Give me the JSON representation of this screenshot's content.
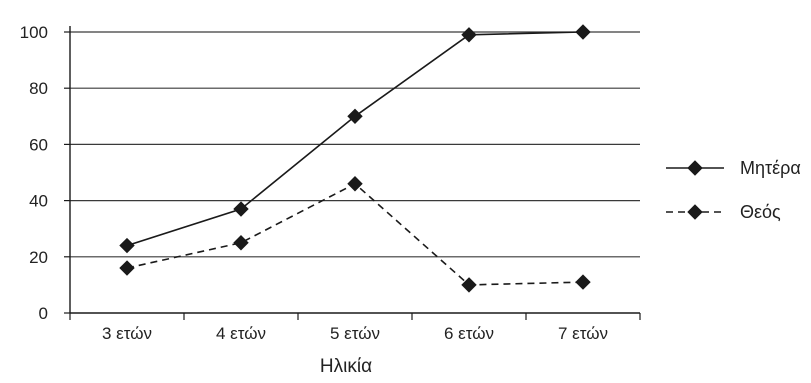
{
  "chart_data": {
    "type": "line",
    "categories": [
      "3 ετών",
      "4 ετών",
      "5 ετών",
      "6 ετών",
      "7 ετών"
    ],
    "series": [
      {
        "name": "Μητέρα",
        "values": [
          24,
          37,
          70,
          99,
          100
        ],
        "line_style": "solid",
        "marker": "diamond"
      },
      {
        "name": "Θεός",
        "values": [
          16,
          25,
          46,
          10,
          11
        ],
        "line_style": "dashed",
        "marker": "diamond"
      }
    ],
    "xlabel": "Ηλικία",
    "ylabel": "",
    "ylim": [
      0,
      100
    ],
    "yticks": [
      0,
      20,
      40,
      60,
      80,
      100
    ],
    "grid": true,
    "legend_position": "right",
    "colors": {
      "line": "#1a1a1a",
      "grid": "#3a3a3a",
      "background": "#ffffff"
    }
  }
}
